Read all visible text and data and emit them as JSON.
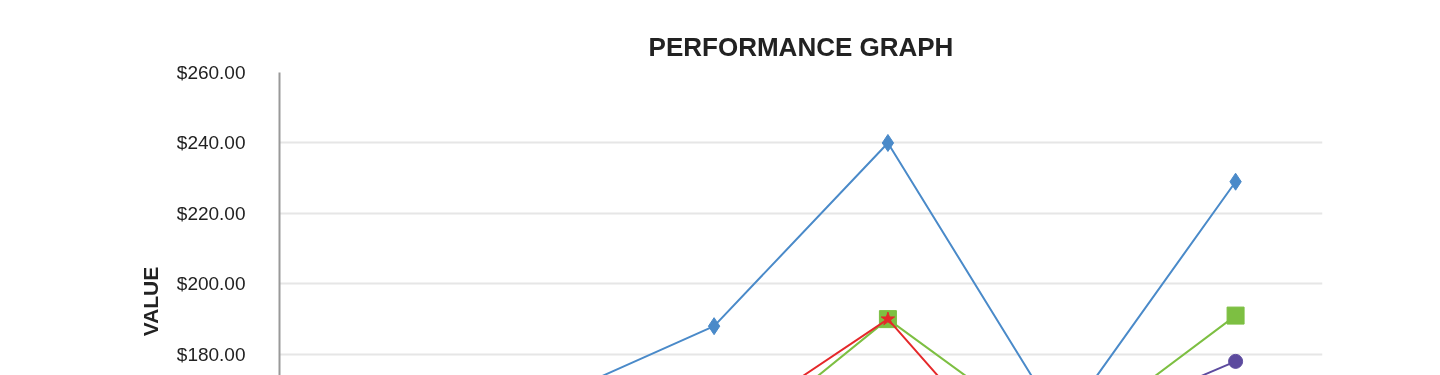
{
  "chart_data": {
    "type": "line",
    "title": "PERFORMANCE GRAPH",
    "ylabel": "VALUE",
    "categories": [
      null,
      null,
      null,
      null,
      null,
      null
    ],
    "ylim": [
      130,
      260
    ],
    "yticks": [
      {
        "value": 180,
        "label": "$180.00"
      },
      {
        "value": 200,
        "label": "$200.00"
      },
      {
        "value": 220,
        "label": "$220.00"
      },
      {
        "value": 240,
        "label": "$240.00"
      },
      {
        "value": 260,
        "label": "$260.00"
      }
    ],
    "grid": "y",
    "tick_labels": "y",
    "line_style": "solid",
    "series": [
      {
        "color": "#4a8ac9",
        "marker": "diamond",
        "values": [
          null,
          166,
          188,
          240,
          160,
          229
        ]
      },
      {
        "color": "#7dbf42",
        "marker": "square",
        "values": [
          null,
          null,
          150,
          190,
          154,
          191
        ]
      },
      {
        "color": "#e5282a",
        "marker": "star",
        "values": [
          null,
          null,
          157,
          190,
          134,
          null
        ]
      },
      {
        "color": "#5c4a9e",
        "marker": "circle",
        "values": [
          null,
          null,
          null,
          null,
          157,
          178
        ]
      }
    ]
  }
}
